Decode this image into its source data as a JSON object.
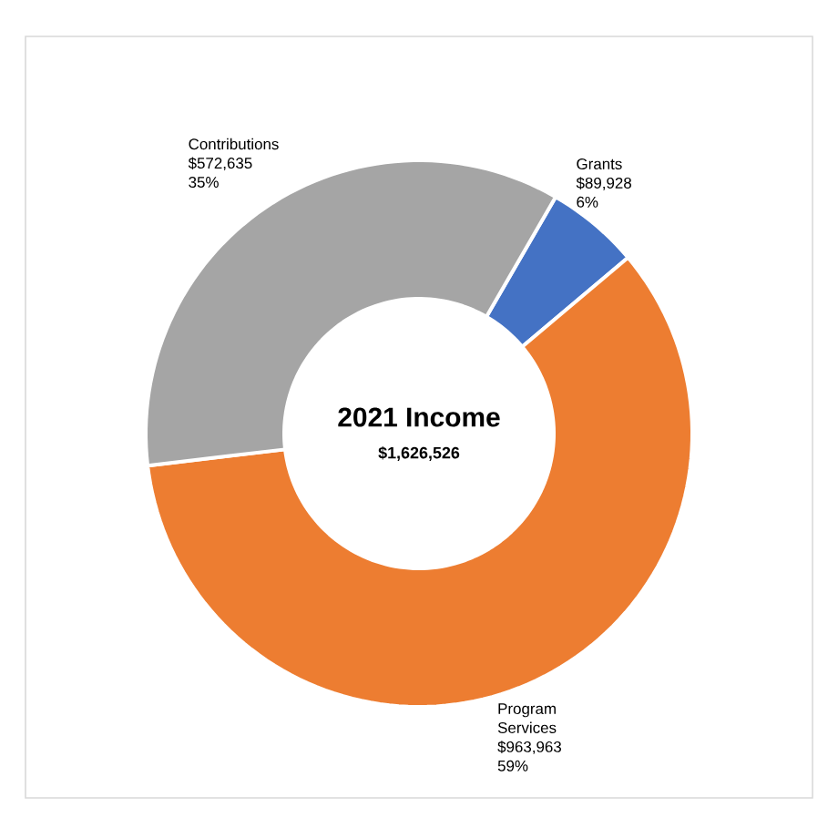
{
  "chart_data": {
    "type": "donut",
    "title": "2021 Income",
    "subtitle": "$1,626,526",
    "categories": [
      "Grants",
      "Program Services",
      "Contributions"
    ],
    "values": [
      89928,
      963963,
      572635
    ],
    "colors": [
      "#4472c4",
      "#ed7d31",
      "#a5a5a5"
    ],
    "value_labels": [
      "$89,928",
      "$963,963",
      "$572,635"
    ],
    "annotations": [
      {
        "text": "6%",
        "x": "Grants"
      },
      {
        "text": "59%",
        "x": "Program Services"
      },
      {
        "text": "35%",
        "x": "Contributions"
      }
    ]
  }
}
